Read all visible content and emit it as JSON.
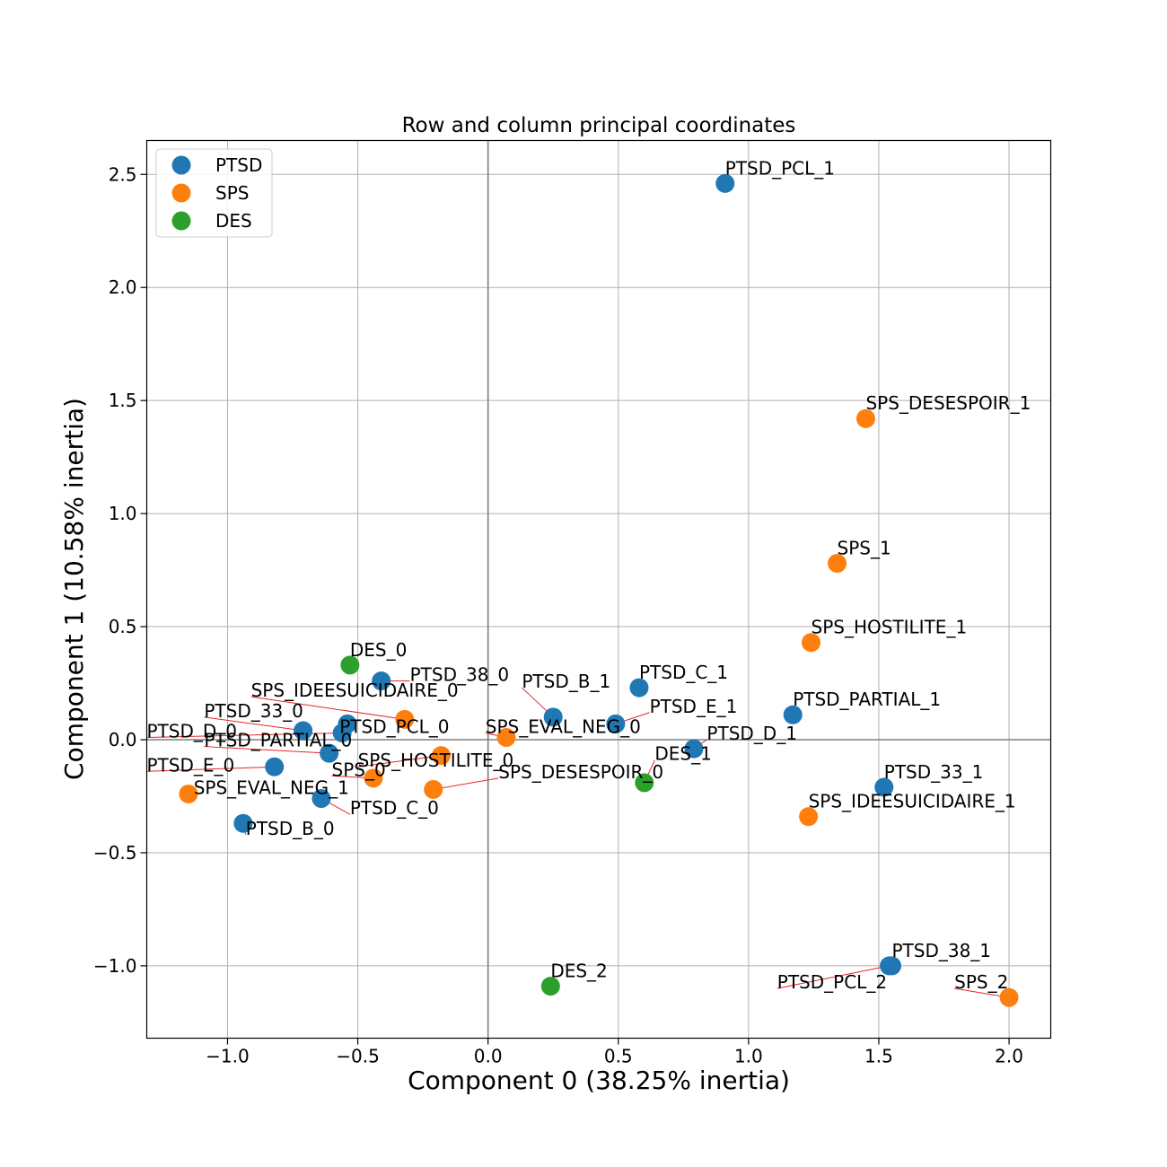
{
  "chart_data": {
    "type": "scatter",
    "title": "Row and column principal coordinates",
    "xlabel": "Component 0 (38.25% inertia)",
    "ylabel": "Component 1 (10.58% inertia)",
    "xlim": [
      -1.31,
      2.16
    ],
    "ylim": [
      -1.32,
      2.65
    ],
    "xticks": [
      -1.0,
      -0.5,
      0.0,
      0.5,
      1.0,
      1.5,
      2.0
    ],
    "yticks": [
      -1.0,
      -0.5,
      0.0,
      0.5,
      1.0,
      1.5,
      2.0,
      2.5
    ],
    "xtick_labels": [
      "−1.0",
      "−0.5",
      "0.0",
      "0.5",
      "1.0",
      "1.5",
      "2.0"
    ],
    "ytick_labels": [
      "−1.0",
      "−0.5",
      "0.0",
      "0.5",
      "1.0",
      "1.5",
      "2.0",
      "2.5"
    ],
    "grid": true,
    "legend_position": "top-left",
    "reference_lines": {
      "x": 0,
      "y": 0
    },
    "series": [
      {
        "name": "PTSD",
        "color": "#1f77b4",
        "points": [
          {
            "label": "PTSD_PCL_1",
            "x": 0.91,
            "y": 2.46,
            "lx": 0.91,
            "ly": 2.5
          },
          {
            "label": "PTSD_38_0",
            "x": -0.41,
            "y": 0.26,
            "lx": -0.3,
            "ly": 0.26
          },
          {
            "label": "PTSD_B_1",
            "x": 0.25,
            "y": 0.1,
            "lx": 0.13,
            "ly": 0.23
          },
          {
            "label": "PTSD_C_1",
            "x": 0.58,
            "y": 0.23,
            "lx": 0.58,
            "ly": 0.27
          },
          {
            "label": "PTSD_E_1",
            "x": 0.49,
            "y": 0.07,
            "lx": 0.62,
            "ly": 0.12
          },
          {
            "label": "PTSD_PARTIAL_1",
            "x": 1.17,
            "y": 0.11,
            "lx": 1.17,
            "ly": 0.15
          },
          {
            "label": "PTSD_D_1",
            "x": 0.79,
            "y": -0.04,
            "lx": 0.84,
            "ly": 0.0
          },
          {
            "label": "PTSD_33_0",
            "x": -0.71,
            "y": 0.04,
            "lx": -1.09,
            "ly": 0.1
          },
          {
            "label": "PTSD_PCL_0",
            "x": -0.54,
            "y": 0.07,
            "lx": -0.57,
            "ly": 0.03
          },
          {
            "label": "PTSD_D_0",
            "x": -0.56,
            "y": 0.03,
            "lx": -1.31,
            "ly": 0.01
          },
          {
            "label": "PTSD_PARTIAL_0",
            "x": -0.61,
            "y": -0.06,
            "lx": -1.09,
            "ly": -0.03
          },
          {
            "label": "PTSD_E_0",
            "x": -0.82,
            "y": -0.12,
            "lx": -1.31,
            "ly": -0.14
          },
          {
            "label": "PTSD_C_0",
            "x": -0.64,
            "y": -0.26,
            "lx": -0.53,
            "ly": -0.33
          },
          {
            "label": "PTSD_B_0",
            "x": -0.94,
            "y": -0.37,
            "lx": -0.93,
            "ly": -0.42
          },
          {
            "label": "PTSD_33_1",
            "x": 1.52,
            "y": -0.21,
            "lx": 1.52,
            "ly": -0.17
          },
          {
            "label": "PTSD_38_1",
            "x": 1.55,
            "y": -1.0,
            "lx": 1.55,
            "ly": -0.96
          },
          {
            "label": "PTSD_PCL_2",
            "x": 1.54,
            "y": -1.0,
            "lx": 1.11,
            "ly": -1.1
          }
        ]
      },
      {
        "name": "SPS",
        "color": "#ff7f0e",
        "points": [
          {
            "label": "SPS_DESESPOIR_1",
            "x": 1.45,
            "y": 1.42,
            "lx": 1.45,
            "ly": 1.46
          },
          {
            "label": "SPS_1",
            "x": 1.34,
            "y": 0.78,
            "lx": 1.34,
            "ly": 0.82
          },
          {
            "label": "SPS_HOSTILITE_1",
            "x": 1.24,
            "y": 0.43,
            "lx": 1.24,
            "ly": 0.47
          },
          {
            "label": "SPS_IDEESUICIDAIRE_0",
            "x": -0.32,
            "y": 0.09,
            "lx": -0.91,
            "ly": 0.19
          },
          {
            "label": "SPS_EVAL_NEG_0",
            "x": 0.07,
            "y": 0.01,
            "lx": -0.01,
            "ly": 0.03
          },
          {
            "label": "SPS_HOSTILITE_0",
            "x": -0.18,
            "y": -0.07,
            "lx": -0.5,
            "ly": -0.12
          },
          {
            "label": "SPS_0",
            "x": -0.44,
            "y": -0.17,
            "lx": -0.6,
            "ly": -0.16
          },
          {
            "label": "SPS_DESESPOIR_0",
            "x": -0.21,
            "y": -0.22,
            "lx": 0.04,
            "ly": -0.17
          },
          {
            "label": "SPS_EVAL_NEG_1",
            "x": -1.15,
            "y": -0.24,
            "lx": -1.13,
            "ly": -0.24
          },
          {
            "label": "SPS_IDEESUICIDAIRE_1",
            "x": 1.23,
            "y": -0.34,
            "lx": 1.23,
            "ly": -0.3
          },
          {
            "label": "SPS_2",
            "x": 2.0,
            "y": -1.14,
            "lx": 1.79,
            "ly": -1.1
          }
        ]
      },
      {
        "name": "DES",
        "color": "#2ca02c",
        "points": [
          {
            "label": "DES_0",
            "x": -0.53,
            "y": 0.33,
            "lx": -0.53,
            "ly": 0.37
          },
          {
            "label": "DES_1",
            "x": 0.6,
            "y": -0.19,
            "lx": 0.64,
            "ly": -0.09
          },
          {
            "label": "DES_2",
            "x": 0.24,
            "y": -1.09,
            "lx": 0.24,
            "ly": -1.05
          }
        ]
      }
    ]
  }
}
